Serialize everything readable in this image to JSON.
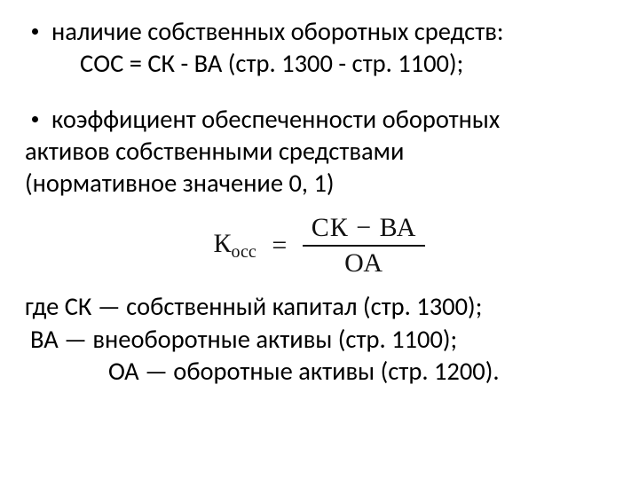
{
  "colors": {
    "background": "#ffffff",
    "text": "#000000",
    "formula": "#111111"
  },
  "typography": {
    "body_font": "Calibri",
    "body_size_pt": 21,
    "formula_font": "Cambria Math",
    "formula_size_pt": 22
  },
  "bullet1": {
    "line1": "наличие собственных оборотных средств:",
    "line2": "СОС = СК - ВА (стр. 1300 - стр. 1100);"
  },
  "bullet2": {
    "line1": "коэффициент обеспеченности оборотных",
    "line2": "активов собственными средствами",
    "line3": "(нормативное значение 0, 1)"
  },
  "formula": {
    "lhs_main": "К",
    "lhs_sub": "осс",
    "eq": "=",
    "numerator": "СК − ВА",
    "denominator": "ОА"
  },
  "definitions": {
    "d1": "где   СК — собственный капитал (стр. 1300);",
    "d2": "ВА — внеоборотные активы (стр. 1100);",
    "d3": "ОА — оборотные активы (стр. 1200)."
  }
}
